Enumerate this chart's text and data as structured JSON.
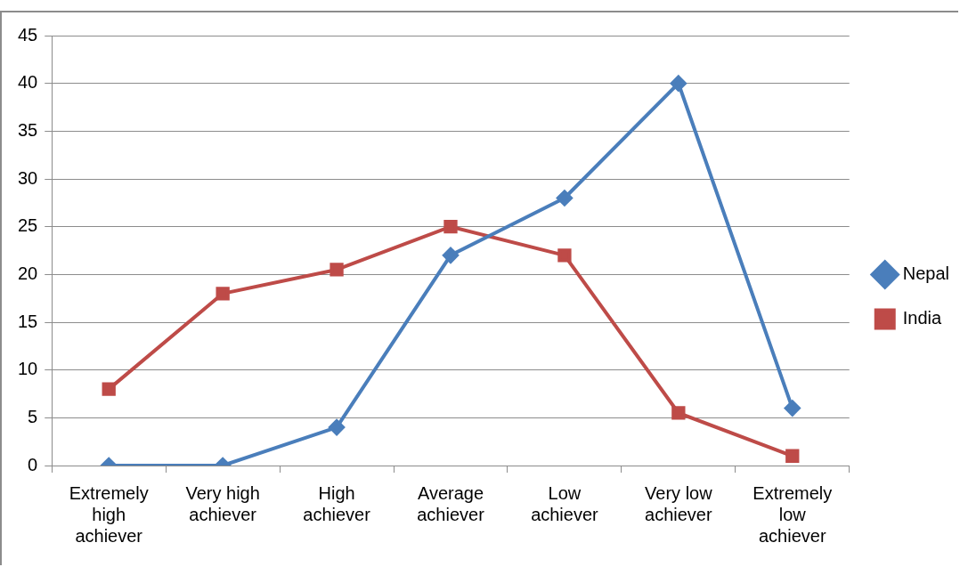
{
  "chart_data": {
    "type": "line",
    "categories": [
      "Extremely high achiever",
      "Very high achiever",
      "High achiever",
      "Average achiever",
      "Low achiever",
      "Very low achiever",
      "Extremely low achiever"
    ],
    "series": [
      {
        "name": "Nepal",
        "color": "#4a7ebb",
        "values": [
          0,
          0,
          4,
          22,
          28,
          40,
          6
        ],
        "marker": "diamond"
      },
      {
        "name": "India",
        "color": "#be4b48",
        "values": [
          8,
          18,
          20.5,
          25,
          22,
          5.5,
          1
        ],
        "marker": "square"
      }
    ],
    "ylim": [
      0,
      45
    ],
    "yticks": [
      0,
      5,
      10,
      15,
      20,
      25,
      30,
      35,
      40,
      45
    ],
    "grid": "y",
    "legend": "right",
    "line_style": "solid"
  }
}
